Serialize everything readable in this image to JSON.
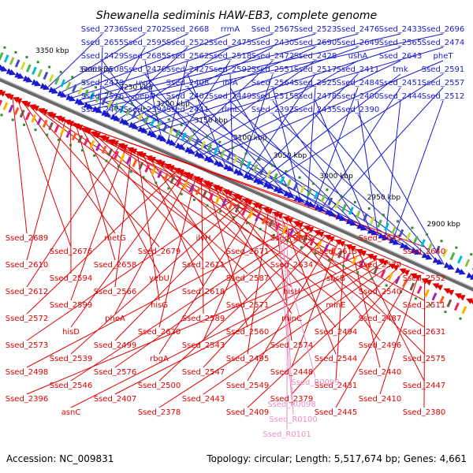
{
  "title": "Shewanella sediminis HAW-EB3, complete genome",
  "footer": {
    "accession": "Accession: NC_009831",
    "summary": "Topology: circular; Length: 5,517,674 bp; Genes: 4,661"
  },
  "colors": {
    "forward": "#1a1ad0",
    "reverse": "#e00000",
    "rna": "#e890c0",
    "backbone": "#808080",
    "ticks": "#2e8b2e"
  },
  "kbp_ticks": [
    "3350 kbp",
    "3300 kbp",
    "3250 kbp",
    "3200 kbp",
    "3150 kbp",
    "3100 kbp",
    "3050 kbp",
    "3000 kbp",
    "2950 kbp",
    "2900 kbp"
  ],
  "blue_labels": [
    "Ssed_2736",
    "Ssed_2702",
    "Ssed_2668",
    "rrmA",
    "Ssed_2567",
    "Ssed_2523",
    "Ssed_2476",
    "Ssed_2433",
    "Ssed_2696",
    "Ssed_2655",
    "Ssed_2595",
    "Ssed_2522",
    "Ssed_2475",
    "Ssed_2430",
    "Ssed_2690",
    "Ssed_2649",
    "Ssed_2565",
    "Ssed_2474",
    "Ssed_2429",
    "Ssed_2685",
    "Ssed_2562",
    "Ssed_2518",
    "Ssed_2472",
    "Ssed_2428",
    "ushA",
    "Ssed_2643",
    "pheT",
    "Ssed_2508",
    "Ssed_2470",
    "Ssed_2427",
    "Ssed_2592",
    "Ssed_2551",
    "Ssed_2517",
    "Ssed_2411",
    "tmk",
    "Ssed_2591",
    "Ssed_2479",
    "uvrC",
    "Ssed_2408",
    "ihfA",
    "Ssed_2564",
    "Ssed_2525",
    "Ssed_2484",
    "Ssed_2451",
    "Ssed_2557",
    "Ssed_2516",
    "pepN",
    "Ssed_2402",
    "Ssed_2449",
    "Ssed_2515",
    "Ssed_2478",
    "Ssed_2400",
    "Ssed_2444",
    "Ssed_2512",
    "Ssed_2477",
    "Ssed_2394",
    "Ssed_2441",
    "rlmL",
    "Ssed_2392",
    "Ssed_2435",
    "Ssed_2390"
  ],
  "red_labels": [
    "Ssed_2689",
    "Ssed_2676",
    "metG",
    "Ssed_2679",
    "ilvH",
    "Ssed_2671",
    "Ssed_2642",
    "Ssed_2613",
    "Ssed_2641",
    "Ssed_2640",
    "Ssed_2610",
    "Ssed_2594",
    "Ssed_2658",
    "yebU",
    "Ssed_2611",
    "Ssed_2587",
    "Ssed_2634",
    "sbcB",
    "Ssed_2579",
    "Ssed_2552",
    "Ssed_2612",
    "Ssed_2599",
    "Ssed_2566",
    "hisG",
    "Ssed_2618",
    "Ssed_2571",
    "hisH",
    "minE",
    "Ssed_2540",
    "Ssed_2511",
    "Ssed_2572",
    "hisD",
    "pheA",
    "Ssed_2630",
    "Ssed_2589",
    "Ssed_2560",
    "minC",
    "Ssed_2494",
    "Ssed_2487",
    "Ssed_2631",
    "Ssed_2573",
    "Ssed_2539",
    "Ssed_2499",
    "rbgA",
    "Ssed_2543",
    "Ssed_2495",
    "Ssed_2574",
    "Ssed_2544",
    "Ssed_2496",
    "Ssed_2575",
    "Ssed_2498",
    "Ssed_2546",
    "Ssed_2576",
    "Ssed_2500",
    "Ssed_2547",
    "Ssed_2549",
    "Ssed_2448",
    "Ssed_2431",
    "Ssed_2440",
    "Ssed_2447",
    "Ssed_2396",
    "asnC",
    "Ssed_2407",
    "Ssed_2378",
    "Ssed_2443",
    "Ssed_2409",
    "Ssed_2379",
    "Ssed_2445",
    "Ssed_2410",
    "Ssed_2380"
  ],
  "rna_labels": [
    "Ssed_R0099",
    "Ssed_R0098",
    "Ssed_R0100",
    "Ssed_R0101"
  ]
}
